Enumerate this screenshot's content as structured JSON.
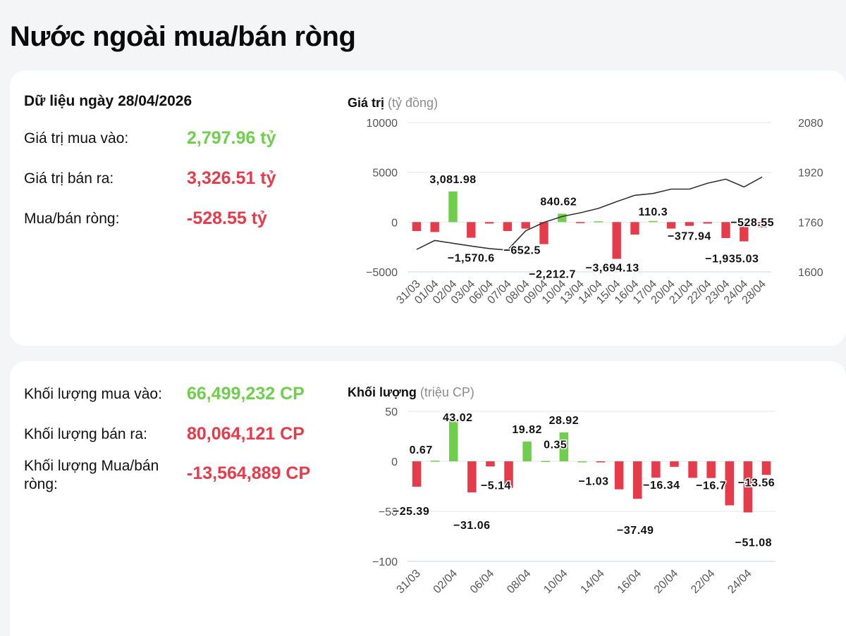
{
  "page_title": "Nước ngoài mua/bán ròng",
  "value_panel": {
    "date_label": "Dữ liệu ngày 28/04/2026",
    "buy_label": "Giá trị mua vào:",
    "buy_value": "2,797.96 tỷ",
    "sell_label": "Giá trị bán ra:",
    "sell_value": "3,326.51 tỷ",
    "net_label": "Mua/bán ròng:",
    "net_value": "-528.55 tỷ",
    "chart_title": "Giá trị",
    "chart_unit": "(tỷ đồng)"
  },
  "volume_panel": {
    "buy_label": "Khối lượng mua vào:",
    "buy_value": "66,499,232 CP",
    "sell_label": "Khối lượng bán ra:",
    "sell_value": "80,064,121 CP",
    "net_label": "Khối lượng Mua/bán ròng:",
    "net_value": "-13,564,889 CP",
    "chart_title": "Khối lượng",
    "chart_unit": "(triệu CP)"
  },
  "colors": {
    "positive": "#6fcf4c",
    "negative": "#e63b4a",
    "line": "#333333",
    "grid": "#e3e6ea"
  },
  "chart_data": [
    {
      "type": "bar",
      "title": "Giá trị",
      "ylabel": "(tỷ đồng)",
      "categories": [
        "31/03",
        "01/04",
        "02/04",
        "03/04",
        "06/04",
        "07/04",
        "08/04",
        "09/04",
        "10/04",
        "13/04",
        "14/04",
        "15/04",
        "16/04",
        "17/04",
        "20/04",
        "21/04",
        "22/04",
        "23/04",
        "24/04",
        "28/04"
      ],
      "values": [
        -900,
        -1000,
        3081.98,
        -1570.6,
        -150,
        -900,
        -652.5,
        -2212.7,
        840.62,
        -100,
        80,
        -3694.13,
        -1250,
        110.3,
        -650,
        -377.94,
        -150,
        -1600,
        -1935.03,
        -528.55
      ],
      "labels": [
        "",
        "",
        "3,081.98",
        "-1,570.6",
        "",
        "",
        "-652.5",
        "-2,212.7",
        "840.62",
        "",
        "",
        "-3,694.13",
        "",
        "110.3",
        "",
        "-377.94",
        "",
        "",
        "-1,935.03",
        "-528.55"
      ],
      "ylim": [
        -5000,
        10000
      ],
      "yticks": [
        10000,
        5000,
        0,
        -5000
      ],
      "ytick_labels": [
        "10000",
        "5000",
        "0",
        "−5000"
      ],
      "secondary_axis": {
        "type": "line",
        "ylim": [
          1600,
          2080
        ],
        "yticks": [
          2080,
          1920,
          1760,
          1600
        ],
        "ytick_labels": [
          "2080",
          "1920",
          "1760",
          "1600"
        ],
        "values": [
          1672,
          1701,
          1692,
          1683,
          1675,
          1670,
          1732,
          1759,
          1778,
          1790,
          1804,
          1826,
          1846,
          1852,
          1866,
          1866,
          1885,
          1898,
          1873,
          1905
        ]
      },
      "grid": true
    },
    {
      "type": "bar",
      "title": "Khối lượng",
      "ylabel": "(triệu CP)",
      "categories": [
        "31/03",
        "01/04",
        "02/04",
        "03/04",
        "06/04",
        "07/04",
        "08/04",
        "09/04",
        "10/04",
        "13/04",
        "14/04",
        "15/04",
        "16/04",
        "17/04",
        "20/04",
        "21/04",
        "22/04",
        "23/04",
        "24/04",
        "28/04"
      ],
      "xtick_labels": [
        "31/03",
        "",
        "02/04",
        "",
        "06/04",
        "",
        "08/04",
        "",
        "10/04",
        "",
        "14/04",
        "",
        "16/04",
        "",
        "20/04",
        "",
        "22/04",
        "",
        "24/04",
        ""
      ],
      "values": [
        -25.39,
        0.67,
        43.02,
        -31.06,
        -5.14,
        -26.5,
        19.82,
        0.35,
        28.92,
        0,
        -1.03,
        -28,
        -37.49,
        -16.34,
        -5.5,
        -16.5,
        -16.7,
        -44,
        -51.08,
        -13.56
      ],
      "labels": [
        "-25.39",
        "0.67",
        "43.02",
        "-31.06",
        "-5.14",
        "",
        "19.82",
        "0.35",
        "28.92",
        "",
        "-1.03",
        "",
        "-37.49",
        "-16.34",
        "",
        "",
        "-16.7",
        "",
        "-51.08",
        "-13.56"
      ],
      "ylim": [
        -100,
        50
      ],
      "yticks": [
        50,
        0,
        -50,
        -100
      ],
      "ytick_labels": [
        "50",
        "0",
        "−50",
        "−100"
      ],
      "grid": true
    }
  ]
}
